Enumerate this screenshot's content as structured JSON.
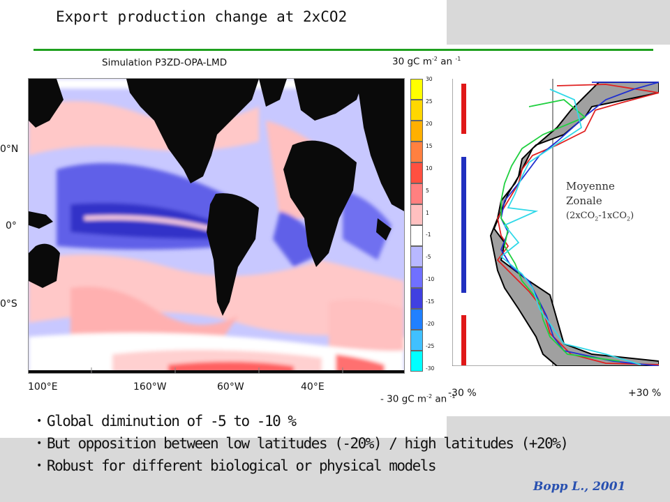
{
  "title": "Export production change at 2xCO2",
  "map": {
    "label": "Simulation P3ZD-OPA-LMD",
    "lat_labels": [
      "0°N",
      "0°",
      "0°S"
    ],
    "lon_labels": [
      "100°E",
      "160°W",
      "60°W",
      "40°E"
    ]
  },
  "colorbar": {
    "top_label": "30 gC m",
    "top_sup1": "-2",
    "top_mid": " an ",
    "top_sup2": "-1",
    "bottom_label": "- 30 gC m",
    "bottom_sup1": "-2",
    "bottom_mid": " an ",
    "bottom_sup2": "-1",
    "ticks": [
      "30",
      "25",
      "20",
      "15",
      "10",
      "5",
      "1",
      "-1",
      "-5",
      "-10",
      "-15",
      "-20",
      "-25",
      "-30"
    ],
    "colors": [
      "#ffff00",
      "#ffd700",
      "#ffb000",
      "#ff8040",
      "#ff5040",
      "#ff8080",
      "#ffc0c0",
      "#ffffff",
      "#b8b8ff",
      "#7070ff",
      "#4040e0",
      "#2080ff",
      "#40c0ff",
      "#00ffff"
    ]
  },
  "profile": {
    "label_line1": "Moyenne",
    "label_line2": "Zonale",
    "label_line3a": "(2xCO",
    "label_sub": "2",
    "label_line3b": "-1xCO",
    "label_sub2": "2",
    "label_line3c": ")",
    "left_pct": "-30 %",
    "right_pct": "+30 %"
  },
  "bullets": [
    "Global diminution of -5 to -10 %",
    "But opposition between low latitudes (-20%) / high latitudes (+20%)",
    "Robust for different biological or physical models"
  ],
  "reference": "Bopp L.,  2001",
  "colors": {
    "rule": "#1fa01f",
    "reference": "#2850b0",
    "background_band": "#d9d9d9"
  }
}
